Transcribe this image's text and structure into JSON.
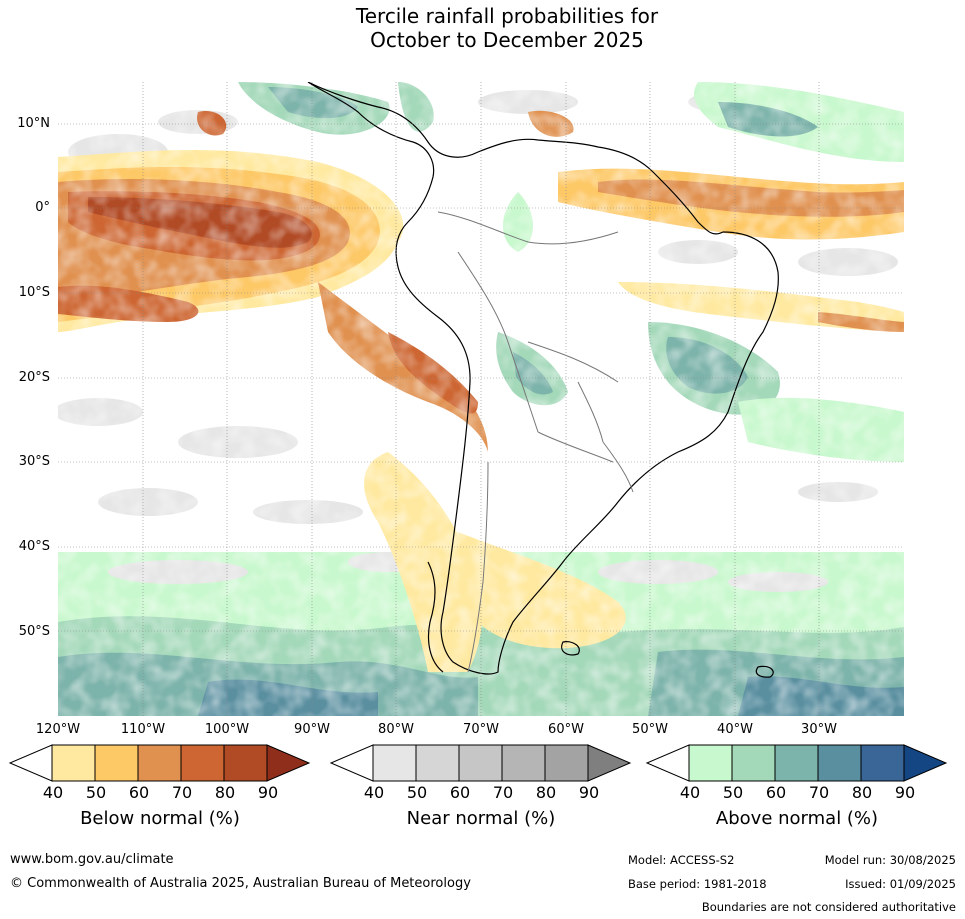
{
  "title_line1": "Tercile rainfall probabilities for",
  "title_line2": "October to December 2025",
  "lat_labels": [
    "10°N",
    "0°",
    "10°S",
    "20°S",
    "30°S",
    "40°S",
    "50°S"
  ],
  "lon_labels": [
    "120°W",
    "110°W",
    "100°W",
    "90°W",
    "80°W",
    "70°W",
    "60°W",
    "50°W",
    "40°W",
    "30°W"
  ],
  "legends": {
    "below": {
      "title": "Below normal (%)",
      "ticks": [
        "40",
        "50",
        "60",
        "70",
        "80",
        "90"
      ],
      "colors": [
        "#ffffff",
        "#ffe9a0",
        "#fdc866",
        "#e09150",
        "#cd6632",
        "#b14b26",
        "#8f2f1b"
      ]
    },
    "near": {
      "title": "Near normal (%)",
      "ticks": [
        "40",
        "50",
        "60",
        "70",
        "80",
        "90"
      ],
      "colors": [
        "#ffffff",
        "#e6e6e6",
        "#d6d6d6",
        "#c6c6c6",
        "#b5b5b5",
        "#a3a3a3",
        "#7f7f7f"
      ]
    },
    "above": {
      "title": "Above normal (%)",
      "ticks": [
        "40",
        "50",
        "60",
        "70",
        "80",
        "90"
      ],
      "colors": [
        "#ffffff",
        "#c8f8cd",
        "#a3d8b9",
        "#7cb3aa",
        "#5a8fa0",
        "#3a6597",
        "#134683"
      ]
    }
  },
  "footer": {
    "website": "www.bom.gov.au/climate",
    "copyright": "© Commonwealth of Australia 2025, Australian Bureau of Meteorology",
    "model": "Model: ACCESS-S2",
    "base_period": "Base period: 1981-2018",
    "model_run": "Model run: 30/08/2025",
    "issued": "Issued: 01/09/2025",
    "boundaries_note": "Boundaries are not considered authoritative"
  }
}
